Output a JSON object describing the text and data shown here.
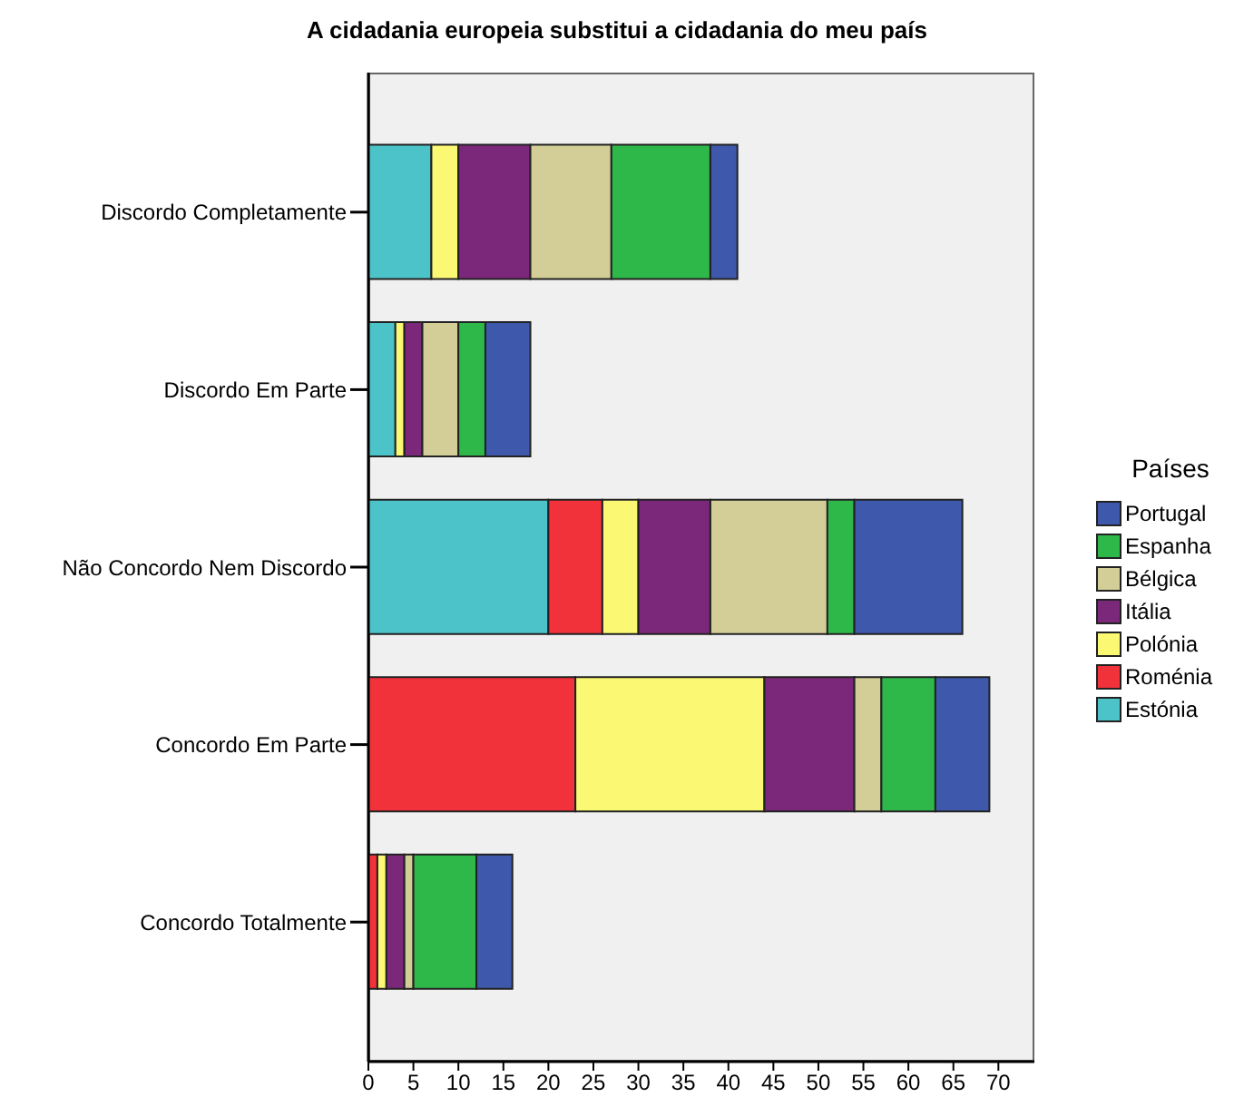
{
  "chart_data": {
    "type": "bar",
    "title": "A cidadania europeia substitui a cidadania do meu país",
    "orientation": "horizontal",
    "stacked": true,
    "categories": [
      "Discordo Completamente",
      "Discordo Em Parte",
      "Não Concordo Nem Discordo",
      "Concordo Em Parte",
      "Concordo Totalmente"
    ],
    "series": [
      {
        "name": "Estónia",
        "color": "#4cc3c8",
        "values": [
          7,
          3,
          20,
          0,
          0
        ]
      },
      {
        "name": "Roménia",
        "color": "#f1323b",
        "values": [
          0,
          0,
          6,
          23,
          1
        ]
      },
      {
        "name": "Polónia",
        "color": "#fbf873",
        "values": [
          3,
          1,
          4,
          21,
          1
        ]
      },
      {
        "name": "Itália",
        "color": "#7b287b",
        "values": [
          8,
          2,
          8,
          10,
          2
        ]
      },
      {
        "name": "Bélgica",
        "color": "#d3ce97",
        "values": [
          9,
          4,
          13,
          3,
          1
        ]
      },
      {
        "name": "Espanha",
        "color": "#2fb84a",
        "values": [
          11,
          3,
          3,
          6,
          7
        ]
      },
      {
        "name": "Portugal",
        "color": "#3e58ac",
        "values": [
          3,
          5,
          12,
          6,
          4
        ]
      }
    ],
    "xlim": [
      0,
      74
    ],
    "xticks": [
      0,
      5,
      10,
      15,
      20,
      25,
      30,
      35,
      40,
      45,
      50,
      55,
      60,
      65,
      70
    ],
    "legend": "right",
    "legend_title": "Países"
  }
}
